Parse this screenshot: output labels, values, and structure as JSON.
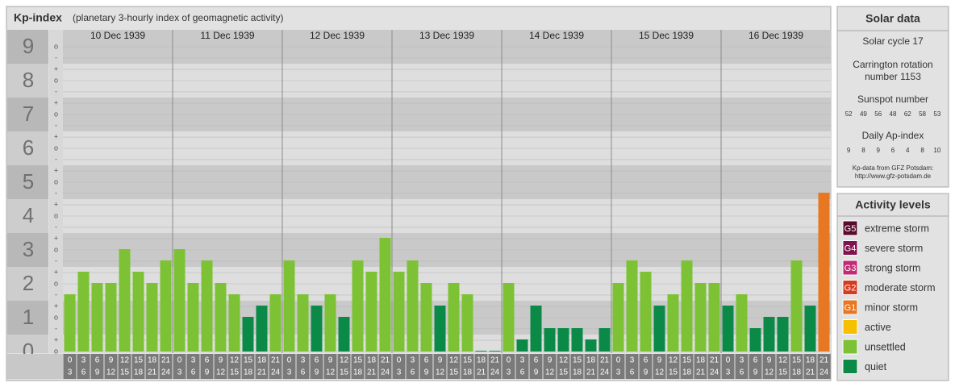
{
  "chart_data": {
    "type": "bar",
    "title": "Kp-index",
    "subtitle": "(planetary 3-hourly index of geomagnetic activity)",
    "ylim": [
      0,
      9.5
    ],
    "yticks": [
      0,
      1,
      2,
      3,
      4,
      5,
      6,
      7,
      8,
      9
    ],
    "ysubticks": [
      {
        "value": 0,
        "label": "o"
      },
      {
        "value": 0.333,
        "label": "+"
      },
      {
        "value": 0.667,
        "label": "-"
      },
      {
        "value": 1,
        "label": "o"
      },
      {
        "value": 1.333,
        "label": "+"
      },
      {
        "value": 1.667,
        "label": "-"
      },
      {
        "value": 2,
        "label": "o"
      },
      {
        "value": 2.333,
        "label": "+"
      },
      {
        "value": 2.667,
        "label": "-"
      },
      {
        "value": 3,
        "label": "o"
      },
      {
        "value": 3.333,
        "label": "+"
      },
      {
        "value": 3.667,
        "label": "-"
      },
      {
        "value": 4,
        "label": "o"
      },
      {
        "value": 4.333,
        "label": "+"
      },
      {
        "value": 4.667,
        "label": "-"
      },
      {
        "value": 5,
        "label": "o"
      },
      {
        "value": 5.333,
        "label": "+"
      },
      {
        "value": 5.667,
        "label": "-"
      },
      {
        "value": 6,
        "label": "o"
      },
      {
        "value": 6.333,
        "label": "+"
      },
      {
        "value": 6.667,
        "label": "-"
      },
      {
        "value": 7,
        "label": "o"
      },
      {
        "value": 7.333,
        "label": "+"
      },
      {
        "value": 7.667,
        "label": "-"
      },
      {
        "value": 8,
        "label": "o"
      },
      {
        "value": 8.333,
        "label": "+"
      },
      {
        "value": 8.667,
        "label": "-"
      },
      {
        "value": 9,
        "label": "o"
      }
    ],
    "grid": true,
    "hour_ranges": [
      [
        0,
        3
      ],
      [
        3,
        6
      ],
      [
        6,
        9
      ],
      [
        9,
        12
      ],
      [
        12,
        15
      ],
      [
        15,
        18
      ],
      [
        18,
        21
      ],
      [
        21,
        24
      ]
    ],
    "days": [
      {
        "label": "10 Dec 1939",
        "values": [
          1.667,
          2.333,
          2,
          2,
          3,
          2.333,
          2,
          2.667
        ],
        "colors": [
          "#7dc234",
          "#7dc234",
          "#7dc234",
          "#7dc234",
          "#7dc234",
          "#7dc234",
          "#7dc234",
          "#7dc234"
        ]
      },
      {
        "label": "11 Dec 1939",
        "values": [
          3,
          2,
          2.667,
          2,
          1.667,
          1,
          1.333,
          1.667
        ],
        "colors": [
          "#7dc234",
          "#7dc234",
          "#7dc234",
          "#7dc234",
          "#7dc234",
          "#0b8a47",
          "#0b8a47",
          "#7dc234"
        ]
      },
      {
        "label": "12 Dec 1939",
        "values": [
          2.667,
          1.667,
          1.333,
          1.667,
          1,
          2.667,
          2.333,
          3.333
        ],
        "colors": [
          "#7dc234",
          "#7dc234",
          "#0b8a47",
          "#7dc234",
          "#0b8a47",
          "#7dc234",
          "#7dc234",
          "#7dc234"
        ]
      },
      {
        "label": "13 Dec 1939",
        "values": [
          2.333,
          2.667,
          2,
          1.333,
          2,
          1.667,
          0,
          0
        ],
        "colors": [
          "#7dc234",
          "#7dc234",
          "#7dc234",
          "#0b8a47",
          "#7dc234",
          "#7dc234",
          "#0b8a47",
          "#0b8a47"
        ]
      },
      {
        "label": "14 Dec 1939",
        "values": [
          2,
          0.333,
          1.333,
          0.667,
          0.667,
          0.667,
          0.333,
          0.667
        ],
        "colors": [
          "#7dc234",
          "#0b8a47",
          "#0b8a47",
          "#0b8a47",
          "#0b8a47",
          "#0b8a47",
          "#0b8a47",
          "#0b8a47"
        ]
      },
      {
        "label": "15 Dec 1939",
        "values": [
          2,
          2.667,
          2.333,
          1.333,
          1.667,
          2.667,
          2,
          2
        ],
        "colors": [
          "#7dc234",
          "#7dc234",
          "#7dc234",
          "#0b8a47",
          "#7dc234",
          "#7dc234",
          "#7dc234",
          "#7dc234"
        ]
      },
      {
        "label": "16 Dec 1939",
        "values": [
          1.333,
          1.667,
          0.667,
          1,
          1,
          2.667,
          1.333,
          4.667
        ],
        "colors": [
          "#0b8a47",
          "#7dc234",
          "#0b8a47",
          "#0b8a47",
          "#0b8a47",
          "#7dc234",
          "#0b8a47",
          "#e87722"
        ]
      }
    ]
  },
  "solar_panel": {
    "title": "Solar data",
    "cycle": "Solar cycle 17",
    "rotation": [
      "Carrington rotation",
      "number 1153"
    ],
    "sunspot_title": "Sunspot number",
    "sunspot": [
      52,
      49,
      56,
      48,
      62,
      58,
      53
    ],
    "ap_title": "Daily Ap-index",
    "ap": [
      9,
      8,
      9,
      6,
      4,
      8,
      10
    ],
    "source": [
      "Kp-data from GFZ Potsdam:",
      "http://www.gfz-potsdam.de"
    ]
  },
  "activity_panel": {
    "title": "Activity levels",
    "levels": [
      {
        "code": "G5",
        "name": "extreme storm",
        "color": "#5a0a2e"
      },
      {
        "code": "G4",
        "name": "severe storm",
        "color": "#80124e"
      },
      {
        "code": "G3",
        "name": "strong storm",
        "color": "#c22a74"
      },
      {
        "code": "G2",
        "name": "moderate storm",
        "color": "#d63b1e"
      },
      {
        "code": "G1",
        "name": "minor storm",
        "color": "#e87722"
      },
      {
        "name": "active",
        "color": "#f6c000"
      },
      {
        "name": "unsettled",
        "color": "#7dc234"
      },
      {
        "name": "quiet",
        "color": "#0b8a47"
      }
    ]
  }
}
